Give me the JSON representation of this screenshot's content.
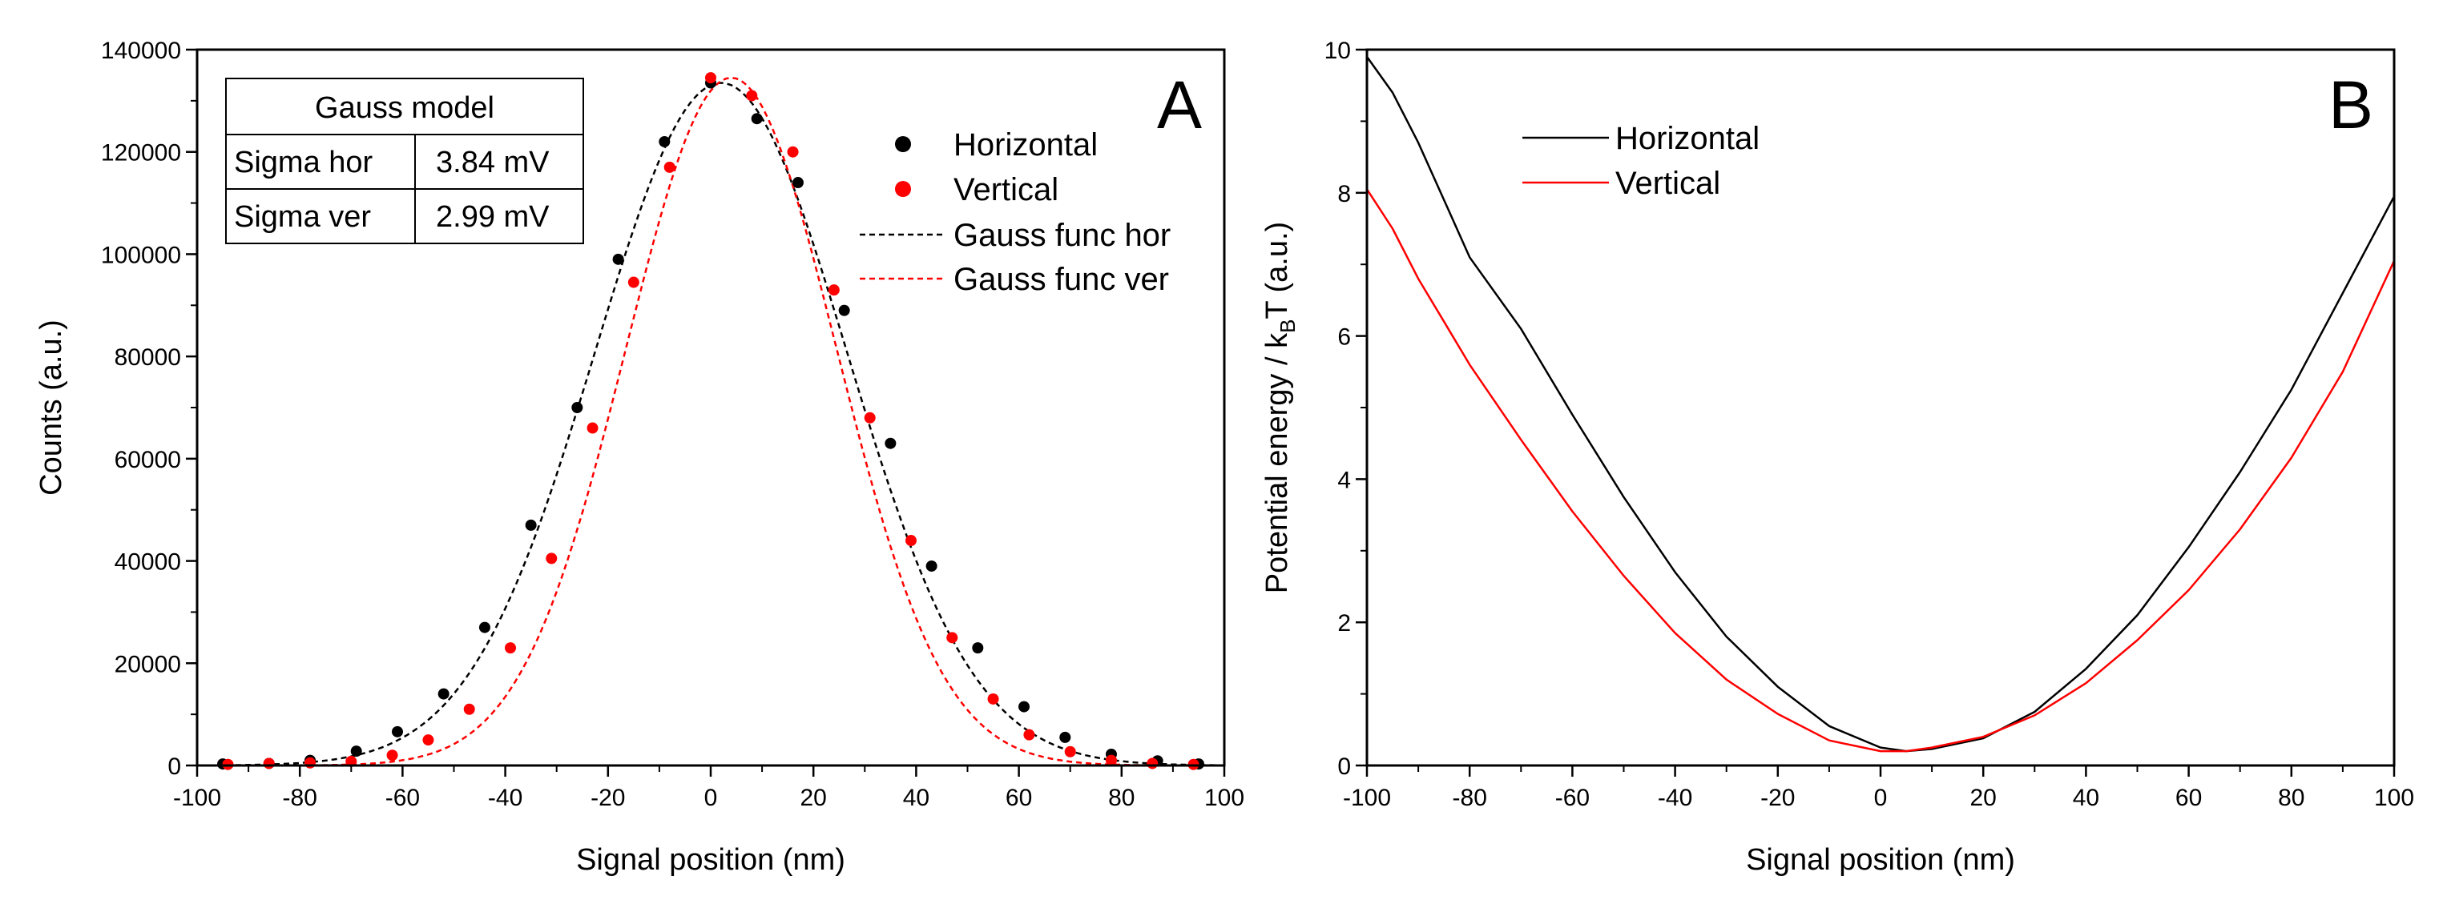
{
  "chart_data": [
    {
      "type": "scatter",
      "panel_label": "A",
      "xlabel": "Signal position (nm)",
      "ylabel": "Counts (a.u.)",
      "xlim": [
        -100,
        100
      ],
      "ylim": [
        0,
        140000
      ],
      "xticks": [
        -100,
        -80,
        -60,
        -40,
        -20,
        0,
        20,
        40,
        60,
        80,
        100
      ],
      "yticks": [
        0,
        20000,
        40000,
        60000,
        80000,
        100000,
        120000,
        140000
      ],
      "series": [
        {
          "name": "Horizontal",
          "kind": "points",
          "color": "#000000",
          "points": [
            [
              -95,
              300
            ],
            [
              -86,
              400
            ],
            [
              -78,
              1000
            ],
            [
              -69,
              2800
            ],
            [
              -61,
              6600
            ],
            [
              -52,
              14000
            ],
            [
              -44,
              27000
            ],
            [
              -35,
              47000
            ],
            [
              -26,
              70000
            ],
            [
              -18,
              99000
            ],
            [
              -9,
              122000
            ],
            [
              0,
              133500
            ],
            [
              9,
              126500
            ],
            [
              17,
              114000
            ],
            [
              26,
              89000
            ],
            [
              35,
              63000
            ],
            [
              43,
              39000
            ],
            [
              52,
              23000
            ],
            [
              61,
              11500
            ],
            [
              69,
              5500
            ],
            [
              78,
              2200
            ],
            [
              87,
              900
            ],
            [
              95,
              300
            ]
          ]
        },
        {
          "name": "Vertical",
          "kind": "points",
          "color": "#ff0000",
          "points": [
            [
              -94,
              200
            ],
            [
              -86,
              400
            ],
            [
              -78,
              500
            ],
            [
              -70,
              800
            ],
            [
              -62,
              2000
            ],
            [
              -55,
              5000
            ],
            [
              -47,
              11000
            ],
            [
              -39,
              23000
            ],
            [
              -31,
              40500
            ],
            [
              -23,
              66000
            ],
            [
              -15,
              94500
            ],
            [
              -8,
              117000
            ],
            [
              0,
              134500
            ],
            [
              8,
              131000
            ],
            [
              16,
              120000
            ],
            [
              24,
              93000
            ],
            [
              31,
              68000
            ],
            [
              39,
              44000
            ],
            [
              47,
              25000
            ],
            [
              55,
              13000
            ],
            [
              62,
              6000
            ],
            [
              70,
              2700
            ],
            [
              78,
              1000
            ],
            [
              86,
              400
            ],
            [
              94,
              200
            ]
          ]
        },
        {
          "name": "Gauss func hor",
          "kind": "dashed-line",
          "color": "#000000",
          "center": 2,
          "sigma": 24.5,
          "amplitude": 133500
        },
        {
          "name": "Gauss func ver",
          "kind": "dashed-line",
          "color": "#ff0000",
          "center": 4,
          "sigma": 20.5,
          "amplitude": 134500
        }
      ],
      "legend": [
        "Horizontal",
        "Vertical",
        "Gauss func hor",
        "Gauss func ver"
      ],
      "legend_position": "top-right",
      "table": {
        "title": "Gauss model",
        "rows": [
          [
            "Sigma hor",
            "3.84 mV"
          ],
          [
            "Sigma ver",
            "2.99 mV"
          ]
        ],
        "position": "top-left"
      }
    },
    {
      "type": "line",
      "panel_label": "B",
      "xlabel": "Signal position (nm)",
      "ylabel_main": "Potential energy / k",
      "ylabel_sub": "B",
      "ylabel_end": "T (a.u.)",
      "xlim": [
        -100,
        100
      ],
      "ylim": [
        0,
        10
      ],
      "xticks": [
        -100,
        -80,
        -60,
        -40,
        -20,
        0,
        20,
        40,
        60,
        80,
        100
      ],
      "yticks": [
        0,
        2,
        4,
        6,
        8,
        10
      ],
      "series": [
        {
          "name": "Horizontal",
          "color": "#000000",
          "points": [
            [
              -100,
              9.9
            ],
            [
              -95,
              9.4
            ],
            [
              -90,
              8.7
            ],
            [
              -85,
              7.9
            ],
            [
              -80,
              7.1
            ],
            [
              -70,
              6.1
            ],
            [
              -60,
              4.9
            ],
            [
              -50,
              3.75
            ],
            [
              -40,
              2.7
            ],
            [
              -30,
              1.8
            ],
            [
              -20,
              1.1
            ],
            [
              -10,
              0.55
            ],
            [
              0,
              0.25
            ],
            [
              5,
              0.2
            ],
            [
              10,
              0.23
            ],
            [
              20,
              0.38
            ],
            [
              30,
              0.75
            ],
            [
              40,
              1.35
            ],
            [
              50,
              2.1
            ],
            [
              60,
              3.05
            ],
            [
              70,
              4.1
            ],
            [
              80,
              5.25
            ],
            [
              90,
              6.6
            ],
            [
              100,
              7.95
            ]
          ]
        },
        {
          "name": "Vertical",
          "color": "#ff0000",
          "points": [
            [
              -100,
              8.05
            ],
            [
              -95,
              7.5
            ],
            [
              -90,
              6.8
            ],
            [
              -85,
              6.2
            ],
            [
              -80,
              5.6
            ],
            [
              -70,
              4.55
            ],
            [
              -60,
              3.55
            ],
            [
              -50,
              2.65
            ],
            [
              -40,
              1.85
            ],
            [
              -30,
              1.2
            ],
            [
              -20,
              0.72
            ],
            [
              -10,
              0.35
            ],
            [
              0,
              0.2
            ],
            [
              5,
              0.2
            ],
            [
              10,
              0.25
            ],
            [
              20,
              0.4
            ],
            [
              30,
              0.7
            ],
            [
              40,
              1.15
            ],
            [
              50,
              1.75
            ],
            [
              60,
              2.45
            ],
            [
              70,
              3.3
            ],
            [
              80,
              4.3
            ],
            [
              90,
              5.5
            ],
            [
              100,
              7.05
            ]
          ]
        }
      ],
      "legend": [
        "Horizontal",
        "Vertical"
      ],
      "legend_position": "top-left"
    }
  ]
}
